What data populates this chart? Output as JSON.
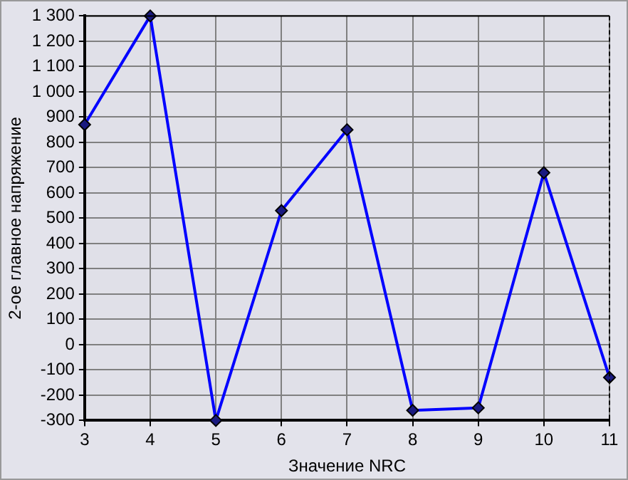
{
  "chart_data": {
    "type": "line",
    "xlabel": "Значение NRC",
    "ylabel": "2-ое главное напряжение",
    "x": [
      3,
      4,
      5,
      6,
      7,
      8,
      9,
      10,
      11
    ],
    "series": [
      {
        "color": "#0000ff",
        "values": [
          870,
          1300,
          -300,
          530,
          850,
          -260,
          -250,
          680,
          -130
        ]
      }
    ],
    "xlim": [
      3,
      11
    ],
    "xticks": [
      3,
      4,
      5,
      6,
      7,
      8,
      9,
      10,
      11
    ],
    "ylim": [
      -300,
      1300
    ],
    "yticks": [
      -300,
      -200,
      -100,
      0,
      100,
      200,
      300,
      400,
      500,
      600,
      700,
      800,
      900,
      {
        "value": 1000,
        "label": "1 000"
      },
      {
        "value": 1100,
        "label": "1 100"
      },
      {
        "value": 1200,
        "label": "1 200"
      },
      {
        "value": 1300,
        "label": "1 300"
      }
    ],
    "grid": true,
    "marker": "diamond",
    "line_style": "solid",
    "legend": false
  }
}
